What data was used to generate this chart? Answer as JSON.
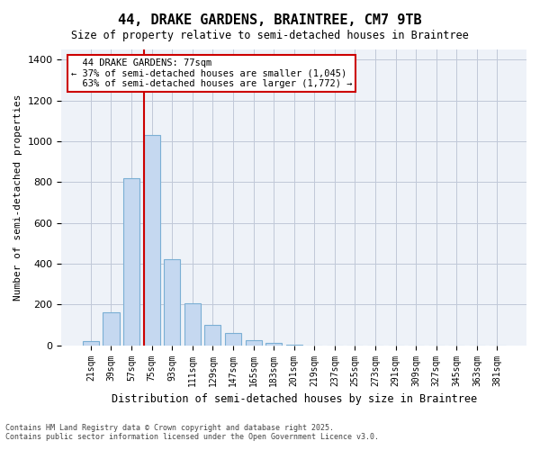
{
  "title_line1": "44, DRAKE GARDENS, BRAINTREE, CM7 9TB",
  "title_line2": "Size of property relative to semi-detached houses in Braintree",
  "xlabel": "Distribution of semi-detached houses by size in Braintree",
  "ylabel": "Number of semi-detached properties",
  "bar_color": "#c5d8f0",
  "bar_edge_color": "#7bafd4",
  "grid_color": "#c0c8d8",
  "background_color": "#eef2f8",
  "categories": [
    "21sqm",
    "39sqm",
    "57sqm",
    "75sqm",
    "93sqm",
    "111sqm",
    "129sqm",
    "147sqm",
    "165sqm",
    "183sqm",
    "201sqm",
    "219sqm",
    "237sqm",
    "255sqm",
    "273sqm",
    "291sqm",
    "309sqm",
    "327sqm",
    "345sqm",
    "363sqm",
    "381sqm"
  ],
  "values": [
    20,
    160,
    820,
    1030,
    420,
    205,
    100,
    60,
    25,
    10,
    5,
    0,
    0,
    0,
    0,
    0,
    0,
    0,
    0,
    0,
    0
  ],
  "ylim": [
    0,
    1450
  ],
  "yticks": [
    0,
    200,
    400,
    600,
    800,
    1000,
    1200,
    1400
  ],
  "property_size": 77,
  "property_label": "44 DRAKE GARDENS: 77sqm",
  "smaller_pct": "37%",
  "smaller_count": "1,045",
  "larger_pct": "63%",
  "larger_count": "1,772",
  "annotation_box_color": "#cc0000",
  "vline_color": "#cc0000",
  "footnote_line1": "Contains HM Land Registry data © Crown copyright and database right 2025.",
  "footnote_line2": "Contains public sector information licensed under the Open Government Licence v3.0."
}
